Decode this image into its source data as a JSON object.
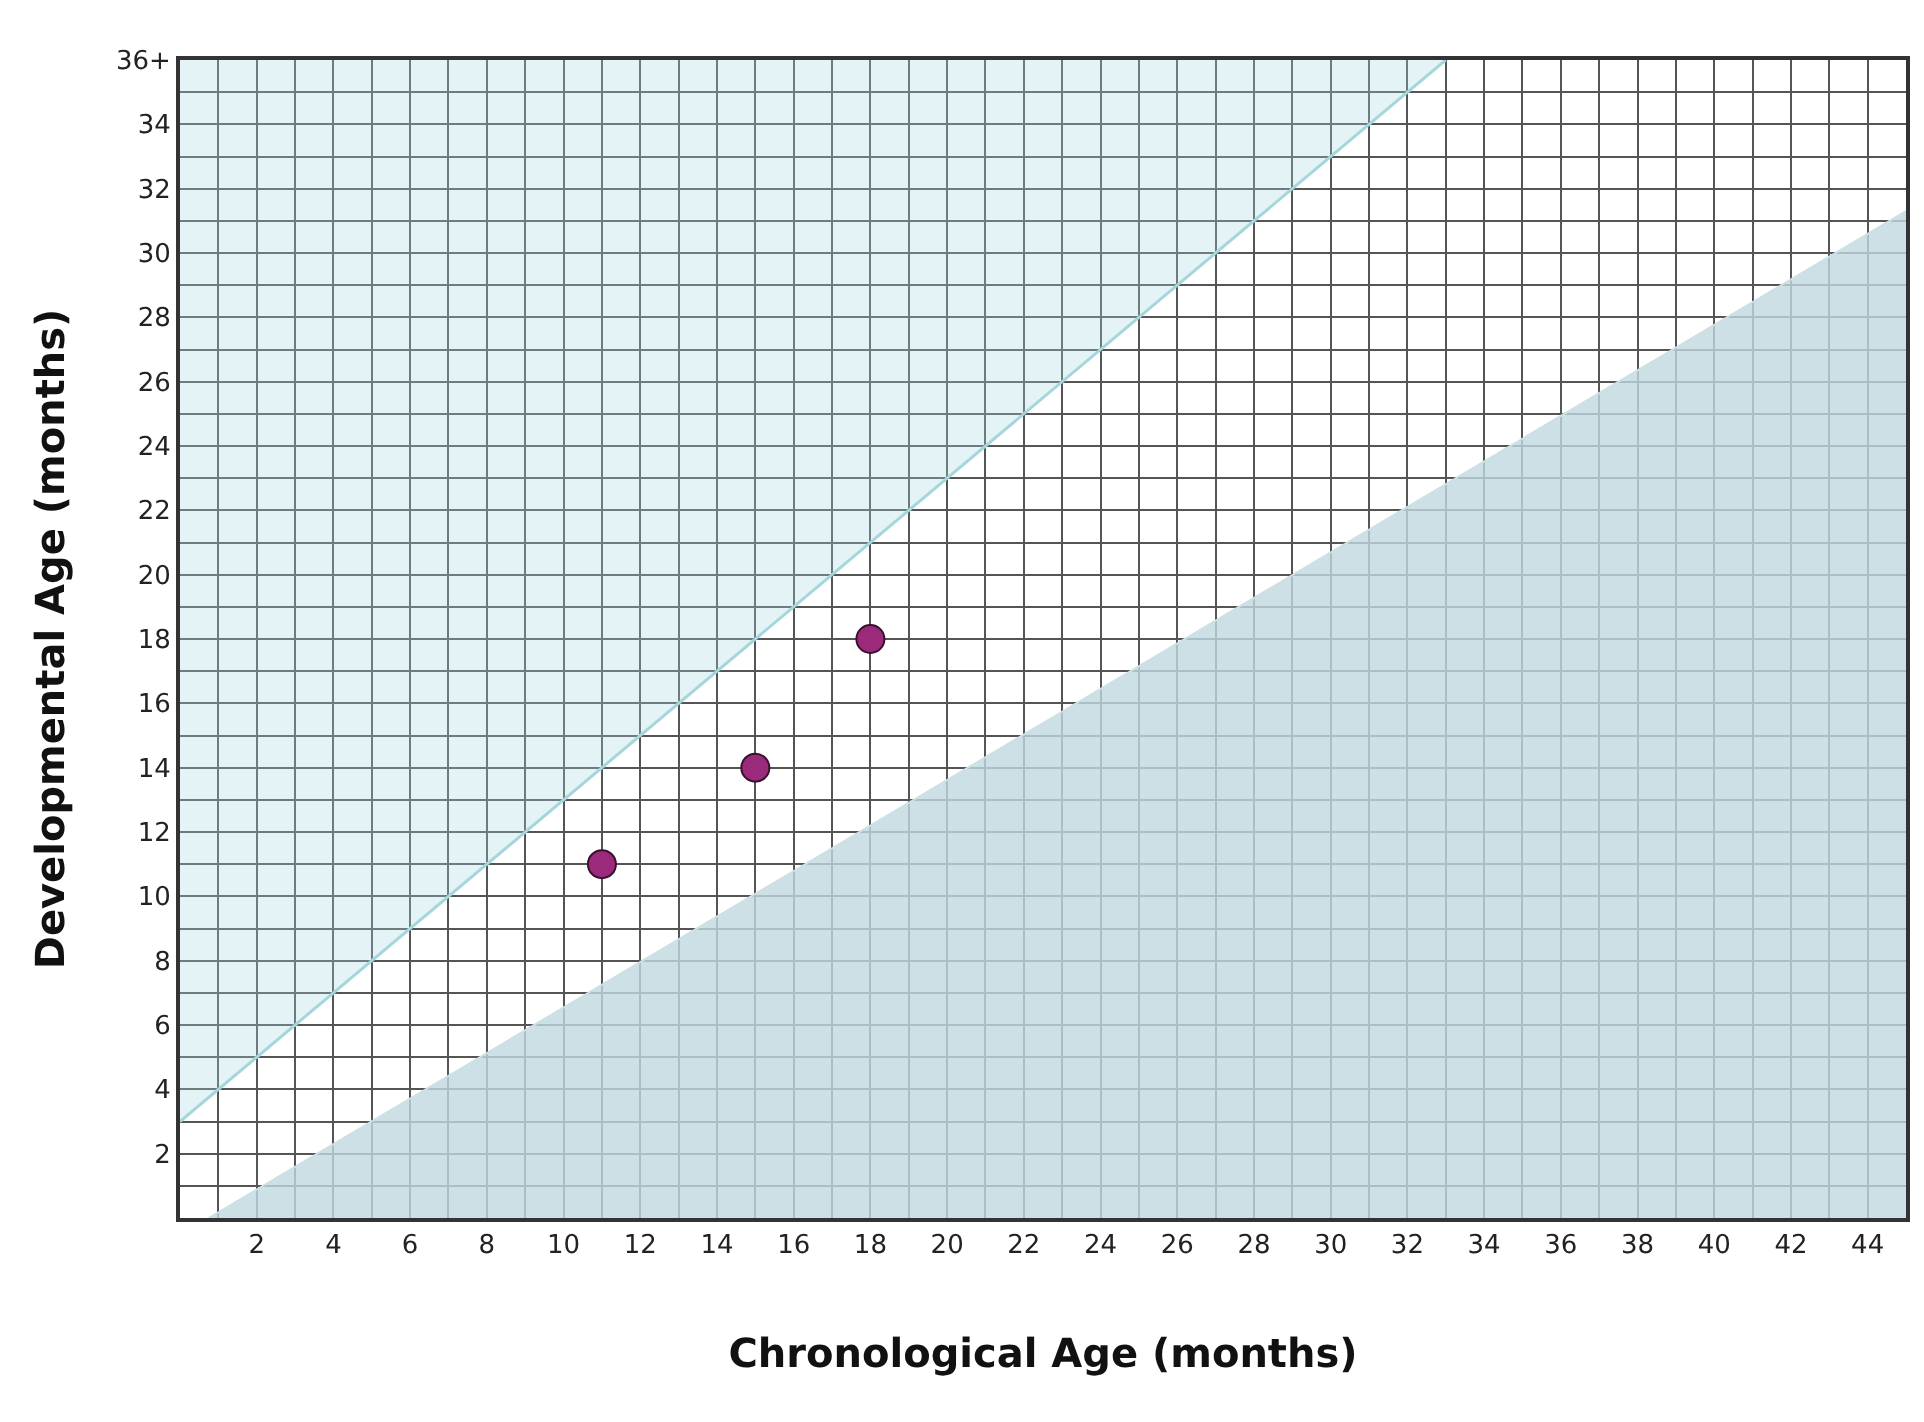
{
  "chart_data": {
    "type": "scatter",
    "xlabel": "Chronological Age (months)",
    "ylabel": "Developmental Age (months)",
    "xlim": [
      0,
      45
    ],
    "ylim": [
      0,
      36
    ],
    "xticks": [
      {
        "value": 1,
        "label": null
      },
      2,
      {
        "value": 3,
        "label": null
      },
      4,
      {
        "value": 5,
        "label": null
      },
      6,
      {
        "value": 7,
        "label": null
      },
      8,
      {
        "value": 9,
        "label": null
      },
      10,
      {
        "value": 11,
        "label": null
      },
      12,
      {
        "value": 13,
        "label": null
      },
      14,
      {
        "value": 15,
        "label": null
      },
      16,
      {
        "value": 17,
        "label": null
      },
      18,
      {
        "value": 19,
        "label": null
      },
      20,
      {
        "value": 21,
        "label": null
      },
      22,
      {
        "value": 23,
        "label": null
      },
      24,
      {
        "value": 25,
        "label": null
      },
      26,
      {
        "value": 27,
        "label": null
      },
      28,
      {
        "value": 29,
        "label": null
      },
      30,
      {
        "value": 31,
        "label": null
      },
      32,
      {
        "value": 33,
        "label": null
      },
      34,
      {
        "value": 35,
        "label": null
      },
      36,
      {
        "value": 37,
        "label": null
      },
      38,
      {
        "value": 39,
        "label": null
      },
      40,
      {
        "value": 41,
        "label": null
      },
      42,
      {
        "value": 43,
        "label": null
      },
      44
    ],
    "yticks": [
      {
        "value": 1,
        "label": null
      },
      2,
      {
        "value": 3,
        "label": null
      },
      4,
      {
        "value": 5,
        "label": null
      },
      6,
      {
        "value": 7,
        "label": null
      },
      8,
      {
        "value": 9,
        "label": null
      },
      10,
      {
        "value": 11,
        "label": null
      },
      12,
      {
        "value": 13,
        "label": null
      },
      14,
      {
        "value": 15,
        "label": null
      },
      16,
      {
        "value": 17,
        "label": null
      },
      18,
      {
        "value": 19,
        "label": null
      },
      20,
      {
        "value": 21,
        "label": null
      },
      22,
      {
        "value": 23,
        "label": null
      },
      24,
      {
        "value": 25,
        "label": null
      },
      26,
      {
        "value": 27,
        "label": null
      },
      28,
      {
        "value": 29,
        "label": null
      },
      30,
      {
        "value": 31,
        "label": null
      },
      32,
      {
        "value": 33,
        "label": null
      },
      34,
      {
        "value": 35,
        "label": null
      },
      {
        "value": 36,
        "label": "36+"
      }
    ],
    "grid": true,
    "series": [
      {
        "type": "line",
        "color": "#a6d6dd",
        "x": [
          0,
          33
        ],
        "values": [
          3,
          36
        ],
        "lower": [
          3,
          36
        ],
        "upper": [
          36,
          36
        ]
      },
      {
        "type": "area",
        "color": "#cde0e6",
        "x": [
          0.75,
          45
        ],
        "values": [
          0,
          31.3
        ]
      },
      {
        "color": "#9b2a7a",
        "x": [
          11,
          15,
          18
        ],
        "values": [
          11,
          14,
          18
        ]
      }
    ]
  }
}
